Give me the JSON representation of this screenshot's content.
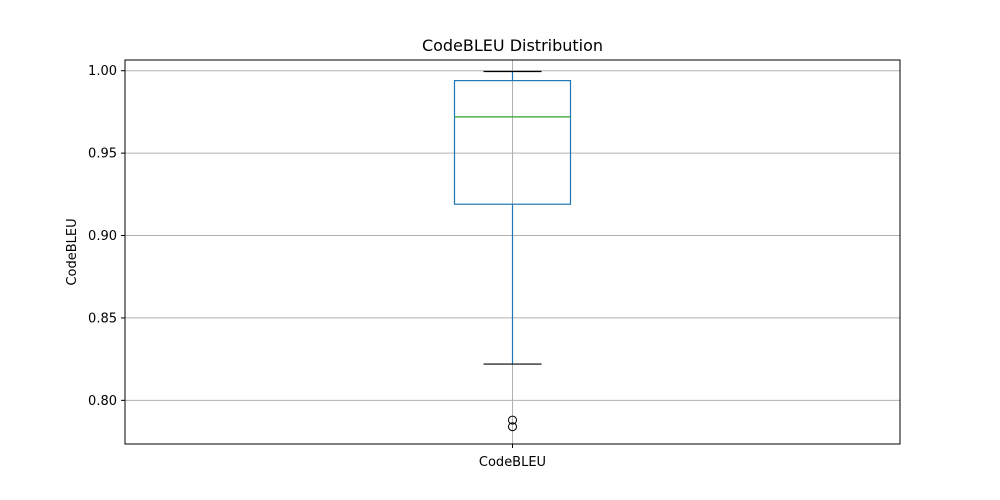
{
  "chart_data": {
    "type": "box",
    "title": "CodeBLEU Distribution",
    "xlabel": "",
    "ylabel": "CodeBLEU",
    "categories": [
      "CodeBLEU"
    ],
    "ylim": [
      0.7735,
      1.0065
    ],
    "yticks": [
      0.8,
      0.85,
      0.9,
      0.95,
      1.0
    ],
    "ytick_labels": [
      "0.80",
      "0.85",
      "0.90",
      "0.95",
      "1.00"
    ],
    "grid": true,
    "boxes": [
      {
        "category": "CodeBLEU",
        "whisker_low": 0.822,
        "q1": 0.919,
        "median": 0.972,
        "q3": 0.994,
        "whisker_high": 0.9995,
        "outliers": [
          0.788,
          0.784
        ]
      }
    ],
    "colors": {
      "box": "#1f77b4",
      "median": "#2ca02c",
      "whisker_cap": "#000000",
      "outlier": "#000000"
    }
  }
}
